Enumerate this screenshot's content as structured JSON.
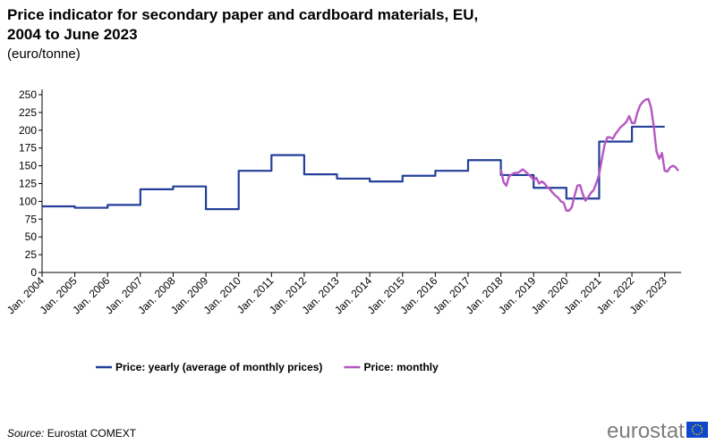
{
  "chart_data": {
    "type": "line",
    "title": [
      "Price indicator for secondary paper and cardboard materials, EU,",
      "2004 to June 2023"
    ],
    "subtitle": "(euro/tonne)",
    "source_label": "Source:",
    "source": "Eurostat COMEXT",
    "logo": "eurostat",
    "xlim": [
      "2004-01",
      "2023-07"
    ],
    "xticks": [
      {
        "value": "2004-01",
        "label": "Jan. 2004"
      },
      {
        "value": "2005-01",
        "label": "Jan. 2005"
      },
      {
        "value": "2006-01",
        "label": "Jan. 2006"
      },
      {
        "value": "2007-01",
        "label": "Jan. 2007"
      },
      {
        "value": "2008-01",
        "label": "Jan. 2008"
      },
      {
        "value": "2009-01",
        "label": "Jan. 2009"
      },
      {
        "value": "2010-01",
        "label": "Jan. 2010"
      },
      {
        "value": "2011-01",
        "label": "Jan. 2011"
      },
      {
        "value": "2012-01",
        "label": "Jan. 2012"
      },
      {
        "value": "2013-01",
        "label": "Jan. 2013"
      },
      {
        "value": "2014-01",
        "label": "Jan. 2014"
      },
      {
        "value": "2015-01",
        "label": "Jan. 2015"
      },
      {
        "value": "2016-01",
        "label": "Jan. 2016"
      },
      {
        "value": "2017-01",
        "label": "Jan. 2017"
      },
      {
        "value": "2018-01",
        "label": "Jan. 2018"
      },
      {
        "value": "2019-01",
        "label": "Jan. 2019"
      },
      {
        "value": "2020-01",
        "label": "Jan. 2020"
      },
      {
        "value": "2021-01",
        "label": "Jan. 2021"
      },
      {
        "value": "2022-01",
        "label": "Jan. 2022"
      },
      {
        "value": "2023-01",
        "label": "Jan. 2023"
      }
    ],
    "ylim": [
      0,
      250
    ],
    "yticks": [
      0,
      25,
      50,
      75,
      100,
      125,
      150,
      175,
      200,
      225,
      250
    ],
    "grid": false,
    "legend": "bottom",
    "series": [
      {
        "name": "Price: yearly (average of monthly prices)",
        "color": "#233f99",
        "step": true,
        "x": [
          "2004-01",
          "2005-01",
          "2006-01",
          "2007-01",
          "2008-01",
          "2009-01",
          "2010-01",
          "2011-01",
          "2012-01",
          "2013-01",
          "2014-01",
          "2015-01",
          "2016-01",
          "2017-01",
          "2018-01",
          "2019-01",
          "2020-01",
          "2021-01",
          "2022-01"
        ],
        "values": [
          93,
          91,
          95,
          117,
          121,
          89,
          143,
          165,
          138,
          132,
          128,
          136,
          143,
          158,
          137,
          119,
          104,
          184,
          205
        ]
      },
      {
        "name": "Price: monthly",
        "color": "#b656c2",
        "step": false,
        "x": [
          "2018-01",
          "2018-02",
          "2018-03",
          "2018-04",
          "2018-05",
          "2018-06",
          "2018-07",
          "2018-08",
          "2018-09",
          "2018-10",
          "2018-11",
          "2018-12",
          "2019-01",
          "2019-02",
          "2019-03",
          "2019-04",
          "2019-05",
          "2019-06",
          "2019-07",
          "2019-08",
          "2019-09",
          "2019-10",
          "2019-11",
          "2019-12",
          "2020-01",
          "2020-02",
          "2020-03",
          "2020-04",
          "2020-05",
          "2020-06",
          "2020-07",
          "2020-08",
          "2020-09",
          "2020-10",
          "2020-11",
          "2020-12",
          "2021-01",
          "2021-02",
          "2021-03",
          "2021-04",
          "2021-05",
          "2021-06",
          "2021-07",
          "2021-08",
          "2021-09",
          "2021-10",
          "2021-11",
          "2021-12",
          "2022-01",
          "2022-02",
          "2022-03",
          "2022-04",
          "2022-05",
          "2022-06",
          "2022-07",
          "2022-08",
          "2022-09",
          "2022-10",
          "2022-11",
          "2022-12",
          "2023-01",
          "2023-02",
          "2023-03",
          "2023-04",
          "2023-05",
          "2023-06"
        ],
        "values": [
          145,
          127,
          122,
          135,
          138,
          140,
          140,
          142,
          145,
          142,
          138,
          135,
          130,
          133,
          125,
          128,
          125,
          120,
          117,
          112,
          108,
          105,
          100,
          98,
          87,
          87,
          92,
          108,
          122,
          123,
          110,
          101,
          106,
          112,
          116,
          126,
          138,
          160,
          180,
          190,
          190,
          188,
          195,
          200,
          205,
          208,
          212,
          220,
          210,
          210,
          225,
          235,
          240,
          243,
          244,
          232,
          205,
          170,
          160,
          168,
          143,
          142,
          148,
          150,
          148,
          143
        ]
      }
    ]
  }
}
